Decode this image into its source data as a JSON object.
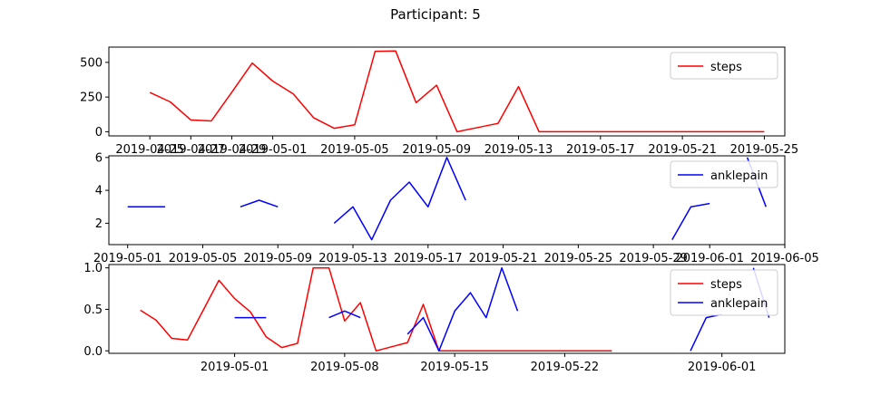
{
  "figure_title": "Participant: 5",
  "chart_data": [
    {
      "type": "line",
      "title": "",
      "xlabel": "",
      "ylabel": "",
      "legend": "upper right",
      "grid": false,
      "xlim": [
        "2019-04-23",
        "2019-05-26"
      ],
      "ylim": [
        -30,
        610
      ],
      "x_ticks": [
        "2019-04-25",
        "2019-04-27",
        "2019-04-29",
        "2019-05-01",
        "2019-05-05",
        "2019-05-09",
        "2019-05-13",
        "2019-05-17",
        "2019-05-21",
        "2019-05-25"
      ],
      "y_ticks": [
        0,
        250,
        500
      ],
      "series": [
        {
          "name": "steps",
          "color": "#ff0000",
          "x": [
            "2019-04-25",
            "2019-04-26",
            "2019-04-27",
            "2019-04-28",
            "2019-04-29",
            "2019-04-30",
            "2019-05-01",
            "2019-05-02",
            "2019-05-03",
            "2019-05-04",
            "2019-05-05",
            "2019-05-06",
            "2019-05-07",
            "2019-05-08",
            "2019-05-09",
            "2019-05-10",
            "2019-05-11",
            "2019-05-12",
            "2019-05-13",
            "2019-05-14",
            "2019-05-15",
            "2019-05-16",
            "2019-05-17",
            "2019-05-18",
            "2019-05-19",
            "2019-05-20",
            "2019-05-21",
            "2019-05-22",
            "2019-05-23",
            "2019-05-24",
            "2019-05-25"
          ],
          "y": [
            283,
            215,
            85,
            78,
            285,
            495,
            365,
            273,
            100,
            25,
            50,
            580,
            582,
            210,
            335,
            0,
            30,
            60,
            325,
            0,
            0,
            0,
            0,
            0,
            0,
            0,
            0,
            0,
            0,
            0,
            0
          ]
        }
      ]
    },
    {
      "type": "line",
      "title": "",
      "xlabel": "",
      "ylabel": "",
      "legend": "upper right",
      "grid": false,
      "xlim": [
        "2019-04-30",
        "2019-06-05"
      ],
      "ylim": [
        0.7,
        6.1
      ],
      "x_ticks": [
        "2019-05-01",
        "2019-05-05",
        "2019-05-09",
        "2019-05-13",
        "2019-05-17",
        "2019-05-21",
        "2019-05-25",
        "2019-05-29",
        "2019-06-01",
        "2019-06-05"
      ],
      "y_ticks": [
        2,
        4,
        6
      ],
      "series": [
        {
          "name": "anklepain",
          "color": "#0000ff",
          "x": [
            "2019-05-01",
            "2019-05-02",
            "2019-05-03",
            "2019-05-04",
            "2019-05-05",
            "2019-05-06",
            "2019-05-07",
            "2019-05-08",
            "2019-05-09",
            "2019-05-10",
            "2019-05-11",
            "2019-05-12",
            "2019-05-13",
            "2019-05-14",
            "2019-05-15",
            "2019-05-16",
            "2019-05-17",
            "2019-05-18",
            "2019-05-19",
            "2019-05-20",
            "2019-05-21",
            "2019-05-22",
            "2019-05-23",
            "2019-05-24",
            "2019-05-25",
            "2019-05-26",
            "2019-05-27",
            "2019-05-28",
            "2019-05-29",
            "2019-05-30",
            "2019-05-31",
            "2019-06-01",
            "2019-06-02",
            "2019-06-03",
            "2019-06-04"
          ],
          "y": [
            3,
            3,
            3,
            null,
            null,
            null,
            3,
            3.4,
            3,
            null,
            null,
            2,
            3,
            1,
            3.4,
            4.5,
            3,
            6,
            3.4,
            null,
            null,
            null,
            null,
            null,
            null,
            null,
            null,
            null,
            null,
            1,
            3,
            3.2,
            null,
            6,
            3
          ]
        }
      ]
    },
    {
      "type": "line",
      "title": "",
      "xlabel": "",
      "ylabel": "",
      "legend": "upper right",
      "grid": false,
      "xlim": [
        "2019-04-23",
        "2019-06-05"
      ],
      "ylim": [
        -0.03,
        1.04
      ],
      "x_ticks": [
        "2019-05-01",
        "2019-05-08",
        "2019-05-15",
        "2019-05-22",
        "2019-06-01"
      ],
      "y_ticks": [
        0.0,
        0.5,
        1.0
      ],
      "series": [
        {
          "name": "steps",
          "color": "#ff0000",
          "x": [
            "2019-04-25",
            "2019-04-26",
            "2019-04-27",
            "2019-04-28",
            "2019-04-29",
            "2019-04-30",
            "2019-05-01",
            "2019-05-02",
            "2019-05-03",
            "2019-05-04",
            "2019-05-05",
            "2019-05-06",
            "2019-05-07",
            "2019-05-08",
            "2019-05-09",
            "2019-05-10",
            "2019-05-11",
            "2019-05-12",
            "2019-05-13",
            "2019-05-14",
            "2019-05-15",
            "2019-05-16",
            "2019-05-17",
            "2019-05-18",
            "2019-05-19",
            "2019-05-20",
            "2019-05-21",
            "2019-05-22",
            "2019-05-23",
            "2019-05-24",
            "2019-05-25"
          ],
          "y": [
            0.49,
            0.37,
            0.15,
            0.13,
            0.49,
            0.85,
            0.63,
            0.47,
            0.17,
            0.04,
            0.09,
            1.0,
            1.0,
            0.36,
            0.58,
            0.0,
            0.05,
            0.1,
            0.56,
            0.0,
            0.0,
            0.0,
            0.0,
            0.0,
            0.0,
            0.0,
            0.0,
            0.0,
            0.0,
            0.0,
            0.0
          ]
        },
        {
          "name": "anklepain",
          "color": "#0000ff",
          "x": [
            "2019-05-01",
            "2019-05-02",
            "2019-05-03",
            "2019-05-04",
            "2019-05-05",
            "2019-05-06",
            "2019-05-07",
            "2019-05-08",
            "2019-05-09",
            "2019-05-10",
            "2019-05-11",
            "2019-05-12",
            "2019-05-13",
            "2019-05-14",
            "2019-05-15",
            "2019-05-16",
            "2019-05-17",
            "2019-05-18",
            "2019-05-19",
            "2019-05-20",
            "2019-05-21",
            "2019-05-22",
            "2019-05-23",
            "2019-05-24",
            "2019-05-25",
            "2019-05-26",
            "2019-05-27",
            "2019-05-28",
            "2019-05-29",
            "2019-05-30",
            "2019-05-31",
            "2019-06-01",
            "2019-06-02",
            "2019-06-03",
            "2019-06-04"
          ],
          "y": [
            0.4,
            0.4,
            0.4,
            null,
            null,
            null,
            0.4,
            0.48,
            0.4,
            null,
            null,
            0.2,
            0.4,
            0.0,
            0.48,
            0.7,
            0.4,
            1.0,
            0.48,
            null,
            null,
            null,
            null,
            null,
            null,
            null,
            null,
            null,
            null,
            0.0,
            0.4,
            0.44,
            null,
            1.0,
            0.4
          ]
        }
      ]
    }
  ]
}
